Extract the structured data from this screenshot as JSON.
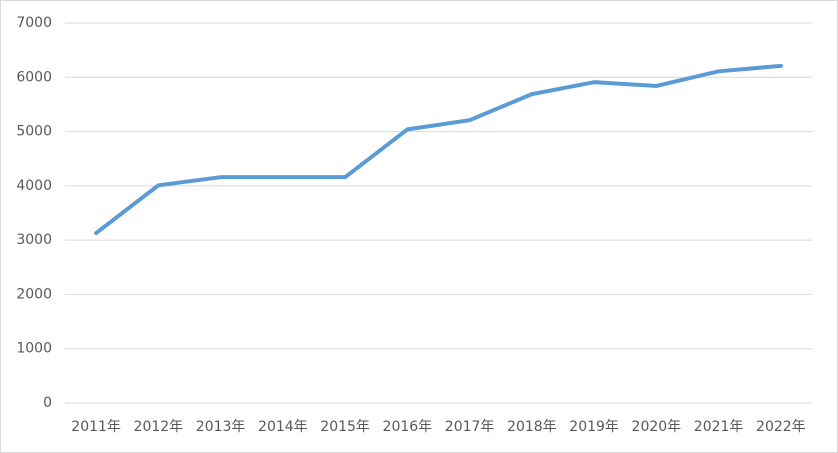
{
  "chart_data": {
    "type": "line",
    "categories": [
      "2011年",
      "2012年",
      "2013年",
      "2014年",
      "2015年",
      "2016年",
      "2017年",
      "2018年",
      "2019年",
      "2020年",
      "2021年",
      "2022年"
    ],
    "values": [
      3130,
      4010,
      4160,
      4160,
      4160,
      5040,
      5210,
      5690,
      5910,
      5840,
      6110,
      6210
    ],
    "color": "#5b9bd5",
    "ylim": [
      0,
      7000
    ],
    "yticks": [
      0,
      1000,
      2000,
      3000,
      4000,
      5000,
      6000,
      7000
    ],
    "grid": true
  }
}
